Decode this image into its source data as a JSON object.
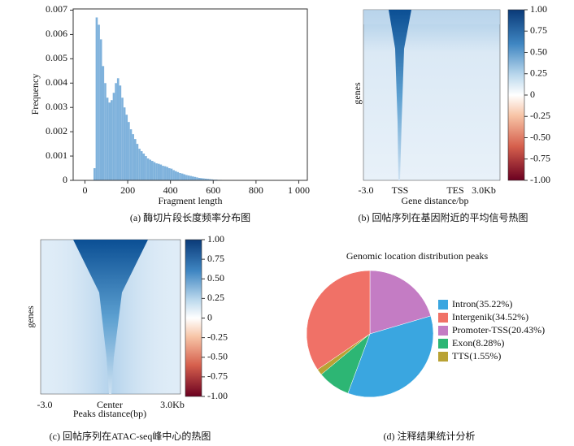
{
  "chart_data": [
    {
      "type": "histogram",
      "xlabel": "Fragment length",
      "ylabel": "Frequency",
      "caption": "(a) 酶切片段长度频率分布图",
      "color": "#7fb2dc",
      "bins": [
        40,
        50,
        60,
        70,
        80,
        90,
        100,
        110,
        120,
        130,
        140,
        150,
        160,
        170,
        180,
        190,
        200,
        210,
        220,
        230,
        240,
        250,
        260,
        270,
        280,
        290,
        300,
        310,
        320,
        330,
        340,
        350,
        360,
        370,
        380,
        390,
        400,
        410,
        420,
        430,
        440,
        450,
        460,
        470,
        480,
        490,
        500,
        510,
        520,
        530,
        540,
        550,
        560,
        570,
        580,
        590,
        600,
        610,
        620,
        630,
        640
      ],
      "values": [
        0.0005,
        0.0067,
        0.0064,
        0.0058,
        0.0047,
        0.004,
        0.0034,
        0.0032,
        0.0033,
        0.0036,
        0.004,
        0.0042,
        0.0039,
        0.0034,
        0.003,
        0.0027,
        0.0024,
        0.0021,
        0.0019,
        0.0017,
        0.0015,
        0.0013,
        0.0012,
        0.0011,
        0.001,
        0.0009,
        0.00085,
        0.0008,
        0.00075,
        0.0007,
        0.00068,
        0.00065,
        0.0006,
        0.00058,
        0.00055,
        0.0005,
        0.00048,
        0.00042,
        0.00038,
        0.00034,
        0.0003,
        0.00028,
        0.00025,
        0.00022,
        0.0002,
        0.00018,
        0.00016,
        0.00014,
        0.00012,
        0.0001,
        9e-05,
        8e-05,
        7e-05,
        6e-05,
        5e-05,
        4e-05,
        3e-05,
        3e-05,
        2e-05,
        2e-05
      ],
      "xlim": [
        -55,
        1040
      ],
      "xticks": [
        0,
        200,
        400,
        600,
        800,
        {
          "value": 1000,
          "label": "1 000"
        }
      ],
      "ylim": [
        0,
        0.00705
      ],
      "yticks": [
        0,
        0.001,
        0.002,
        0.003,
        0.004,
        0.005,
        0.006,
        0.007
      ]
    },
    {
      "type": "heatmap",
      "xlabel": "Gene distance/bp",
      "ylabel": "genes",
      "caption": "(b) 回帖序列在基因附近的平均信号热图",
      "categories": [
        "-3.0",
        "TSS",
        "TES",
        "3.0Kb"
      ],
      "clim": [
        -1,
        1
      ],
      "cticks": [
        {
          "value": 1,
          "label": "1.00"
        },
        0.75,
        {
          "value": 0.5,
          "label": "0.50"
        },
        0.25,
        0,
        -0.25,
        {
          "value": -0.5,
          "label": "-0.50"
        },
        -0.75,
        {
          "value": -1,
          "label": "-1.00"
        }
      ]
    },
    {
      "type": "heatmap",
      "xlabel": "Peaks distance(bp)",
      "ylabel": "genes",
      "caption": "(c) 回帖序列在ATAC-seq峰中心的热图",
      "categories": [
        "-3.0",
        "Center",
        "3.0Kb"
      ],
      "clim": [
        -1,
        1
      ],
      "cticks": [
        {
          "value": 1,
          "label": "1.00"
        },
        0.75,
        {
          "value": 0.5,
          "label": "0.50"
        },
        0.25,
        0,
        -0.25,
        {
          "value": -0.5,
          "label": "-0.50"
        },
        -0.75,
        {
          "value": -1,
          "label": "-1.00"
        }
      ]
    },
    {
      "type": "pie",
      "title": "Genomic location distribution peaks",
      "caption": "(d)  注释结果统计分析",
      "categories": [
        "Intron(35.22%)",
        "Intergenik(34.52%)",
        "Promoter-TSS(20.43%)",
        "Exon(8.28%)",
        "TTS(1.55%)"
      ],
      "values": [
        35.22,
        34.52,
        20.43,
        8.28,
        1.55
      ],
      "colors": [
        "#3aa6e0",
        "#f07167",
        "#c47cc4",
        "#2db674",
        "#b9a234"
      ]
    }
  ]
}
